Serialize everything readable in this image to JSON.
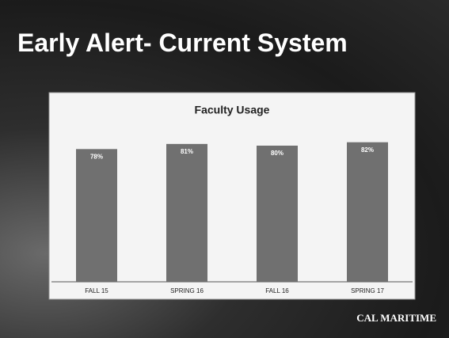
{
  "slide": {
    "title": "Early Alert- Current System",
    "logo": "CAL MARITIME"
  },
  "chart_data": {
    "type": "bar",
    "title": "Faculty Usage",
    "categories": [
      "FALL 15",
      "SPRING 16",
      "FALL 16",
      "SPRING 17"
    ],
    "values": [
      78,
      81,
      80,
      82
    ],
    "value_labels": [
      "78%",
      "81%",
      "80%",
      "82%"
    ],
    "color": "#707070",
    "ylim": [
      0,
      100
    ]
  }
}
